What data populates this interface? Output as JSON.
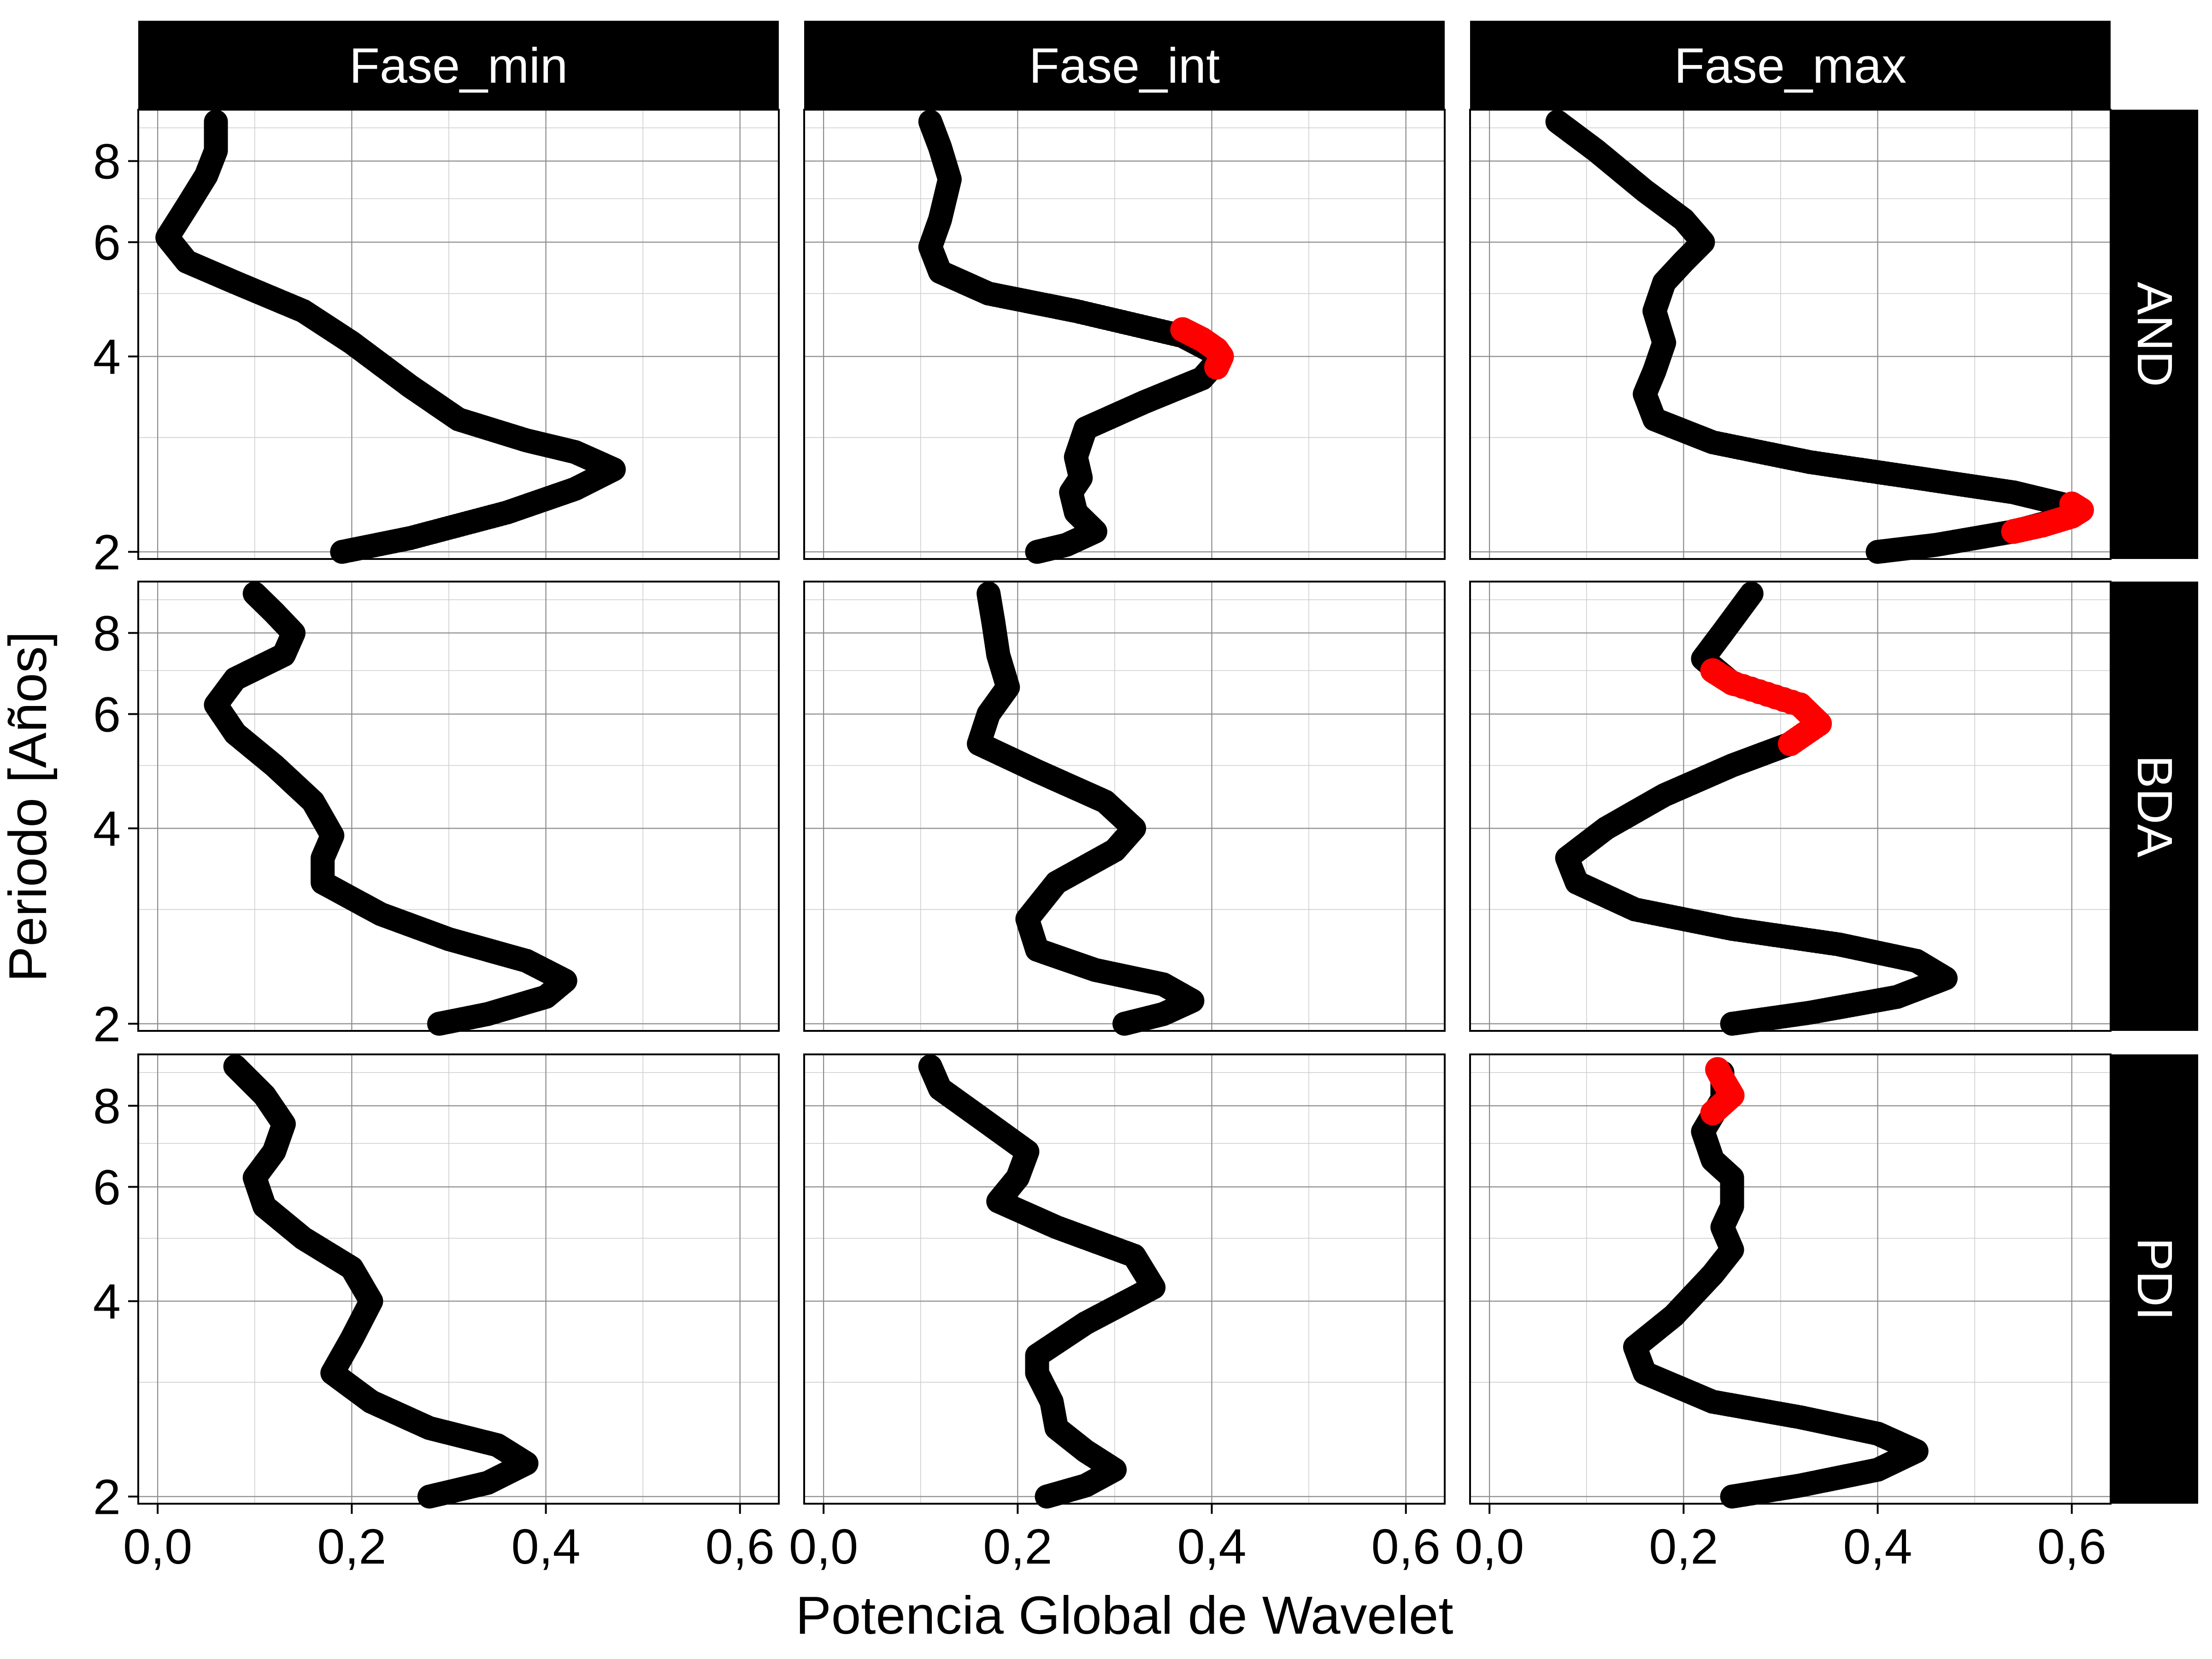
{
  "chart_data": {
    "type": "scatter",
    "title": "",
    "xlabel": "Potencia Global de Wavelet",
    "ylabel": "Periodo [Años]",
    "x_ticks": [
      "0,0",
      "0,2",
      "0,4",
      "0,6"
    ],
    "y_ticks": [
      "2",
      "4",
      "6",
      "8"
    ],
    "xlim": [
      -0.02,
      0.64
    ],
    "ylim": [
      1.95,
      9.6
    ],
    "y_scale": "log",
    "grid": true,
    "facet_columns": [
      "Fase_min",
      "Fase_int",
      "Fase_max"
    ],
    "facet_rows": [
      "AND",
      "BDA",
      "PDI"
    ],
    "colors": {
      "normal": "#000000",
      "significant": "#ff0000",
      "strip": "#000000",
      "strip_text": "#ffffff"
    },
    "panels": [
      {
        "row": "AND",
        "col": "Fase_min",
        "curve": [
          [
            0.19,
            2.0
          ],
          [
            0.26,
            2.1
          ],
          [
            0.36,
            2.3
          ],
          [
            0.43,
            2.5
          ],
          [
            0.47,
            2.68
          ],
          [
            0.43,
            2.85
          ],
          [
            0.38,
            2.97
          ],
          [
            0.31,
            3.2
          ],
          [
            0.26,
            3.6
          ],
          [
            0.2,
            4.2
          ],
          [
            0.15,
            4.7
          ],
          [
            0.08,
            5.2
          ],
          [
            0.03,
            5.6
          ],
          [
            0.01,
            6.1
          ],
          [
            0.03,
            6.8
          ],
          [
            0.05,
            7.6
          ],
          [
            0.06,
            8.3
          ],
          [
            0.06,
            9.2
          ]
        ],
        "significant": []
      },
      {
        "row": "AND",
        "col": "Fase_int",
        "curve": [
          [
            0.22,
            2.0
          ],
          [
            0.25,
            2.05
          ],
          [
            0.28,
            2.15
          ],
          [
            0.26,
            2.3
          ],
          [
            0.255,
            2.47
          ],
          [
            0.265,
            2.6
          ],
          [
            0.26,
            2.8
          ],
          [
            0.27,
            3.1
          ],
          [
            0.33,
            3.4
          ],
          [
            0.39,
            3.7
          ],
          [
            0.41,
            4.0
          ],
          [
            0.37,
            4.3
          ],
          [
            0.26,
            4.7
          ],
          [
            0.17,
            5.0
          ],
          [
            0.12,
            5.4
          ],
          [
            0.11,
            5.9
          ],
          [
            0.12,
            6.5
          ],
          [
            0.13,
            7.5
          ],
          [
            0.12,
            8.4
          ],
          [
            0.11,
            9.2
          ]
        ],
        "significant": [
          [
            0.37,
            4.4
          ],
          [
            0.39,
            4.25
          ],
          [
            0.405,
            4.1
          ],
          [
            0.41,
            4.0
          ],
          [
            0.405,
            3.85
          ]
        ]
      },
      {
        "row": "AND",
        "col": "Fase_max",
        "curve": [
          [
            0.4,
            2.0
          ],
          [
            0.46,
            2.05
          ],
          [
            0.54,
            2.15
          ],
          [
            0.6,
            2.27
          ],
          [
            0.6,
            2.35
          ],
          [
            0.54,
            2.47
          ],
          [
            0.44,
            2.6
          ],
          [
            0.33,
            2.75
          ],
          [
            0.23,
            2.95
          ],
          [
            0.17,
            3.2
          ],
          [
            0.16,
            3.5
          ],
          [
            0.17,
            3.8
          ],
          [
            0.18,
            4.2
          ],
          [
            0.17,
            4.7
          ],
          [
            0.18,
            5.2
          ],
          [
            0.2,
            5.6
          ],
          [
            0.22,
            6.0
          ],
          [
            0.2,
            6.5
          ],
          [
            0.16,
            7.2
          ],
          [
            0.11,
            8.3
          ],
          [
            0.07,
            9.2
          ]
        ],
        "significant": [
          [
            0.54,
            2.15
          ],
          [
            0.57,
            2.2
          ],
          [
            0.6,
            2.27
          ],
          [
            0.61,
            2.32
          ],
          [
            0.6,
            2.37
          ]
        ]
      },
      {
        "row": "BDA",
        "col": "Fase_min",
        "curve": [
          [
            0.29,
            2.0
          ],
          [
            0.34,
            2.07
          ],
          [
            0.4,
            2.2
          ],
          [
            0.42,
            2.33
          ],
          [
            0.38,
            2.5
          ],
          [
            0.3,
            2.7
          ],
          [
            0.23,
            2.95
          ],
          [
            0.17,
            3.3
          ],
          [
            0.17,
            3.6
          ],
          [
            0.18,
            3.9
          ],
          [
            0.16,
            4.4
          ],
          [
            0.12,
            5.0
          ],
          [
            0.08,
            5.6
          ],
          [
            0.06,
            6.2
          ],
          [
            0.08,
            6.8
          ],
          [
            0.13,
            7.4
          ],
          [
            0.14,
            8.0
          ],
          [
            0.12,
            8.6
          ],
          [
            0.1,
            9.2
          ]
        ],
        "significant": []
      },
      {
        "row": "BDA",
        "col": "Fase_int",
        "curve": [
          [
            0.31,
            2.0
          ],
          [
            0.35,
            2.07
          ],
          [
            0.38,
            2.17
          ],
          [
            0.35,
            2.3
          ],
          [
            0.28,
            2.42
          ],
          [
            0.22,
            2.6
          ],
          [
            0.21,
            2.9
          ],
          [
            0.24,
            3.3
          ],
          [
            0.3,
            3.7
          ],
          [
            0.32,
            4.0
          ],
          [
            0.29,
            4.4
          ],
          [
            0.22,
            4.9
          ],
          [
            0.16,
            5.4
          ],
          [
            0.17,
            6.0
          ],
          [
            0.19,
            6.6
          ],
          [
            0.18,
            7.4
          ],
          [
            0.175,
            8.3
          ],
          [
            0.17,
            9.2
          ]
        ],
        "significant": []
      },
      {
        "row": "BDA",
        "col": "Fase_max",
        "curve": [
          [
            0.25,
            2.0
          ],
          [
            0.33,
            2.08
          ],
          [
            0.42,
            2.2
          ],
          [
            0.47,
            2.35
          ],
          [
            0.44,
            2.5
          ],
          [
            0.36,
            2.65
          ],
          [
            0.25,
            2.8
          ],
          [
            0.15,
            3.0
          ],
          [
            0.09,
            3.3
          ],
          [
            0.08,
            3.6
          ],
          [
            0.12,
            4.0
          ],
          [
            0.18,
            4.5
          ],
          [
            0.25,
            5.0
          ],
          [
            0.31,
            5.4
          ],
          [
            0.34,
            5.8
          ],
          [
            0.32,
            6.2
          ],
          [
            0.25,
            6.7
          ],
          [
            0.22,
            7.3
          ],
          [
            0.24,
            8.0
          ],
          [
            0.27,
            9.2
          ]
        ],
        "significant": [
          [
            0.31,
            5.4
          ],
          [
            0.34,
            5.8
          ],
          [
            0.32,
            6.2
          ],
          [
            0.25,
            6.7
          ],
          [
            0.23,
            7.0
          ]
        ]
      },
      {
        "row": "PDI",
        "col": "Fase_min",
        "curve": [
          [
            0.28,
            2.0
          ],
          [
            0.34,
            2.1
          ],
          [
            0.38,
            2.25
          ],
          [
            0.35,
            2.4
          ],
          [
            0.28,
            2.55
          ],
          [
            0.22,
            2.8
          ],
          [
            0.18,
            3.1
          ],
          [
            0.2,
            3.5
          ],
          [
            0.22,
            4.0
          ],
          [
            0.2,
            4.5
          ],
          [
            0.15,
            5.0
          ],
          [
            0.11,
            5.6
          ],
          [
            0.1,
            6.2
          ],
          [
            0.12,
            6.8
          ],
          [
            0.13,
            7.5
          ],
          [
            0.11,
            8.3
          ],
          [
            0.08,
            9.2
          ]
        ],
        "significant": []
      },
      {
        "row": "PDI",
        "col": "Fase_int",
        "curve": [
          [
            0.23,
            2.0
          ],
          [
            0.27,
            2.08
          ],
          [
            0.3,
            2.2
          ],
          [
            0.27,
            2.35
          ],
          [
            0.24,
            2.55
          ],
          [
            0.235,
            2.8
          ],
          [
            0.22,
            3.1
          ],
          [
            0.22,
            3.3
          ],
          [
            0.27,
            3.7
          ],
          [
            0.34,
            4.2
          ],
          [
            0.32,
            4.7
          ],
          [
            0.24,
            5.2
          ],
          [
            0.18,
            5.7
          ],
          [
            0.2,
            6.2
          ],
          [
            0.21,
            6.8
          ],
          [
            0.16,
            7.7
          ],
          [
            0.12,
            8.5
          ],
          [
            0.11,
            9.2
          ]
        ],
        "significant": []
      },
      {
        "row": "PDI",
        "col": "Fase_max",
        "curve": [
          [
            0.25,
            2.0
          ],
          [
            0.32,
            2.08
          ],
          [
            0.4,
            2.2
          ],
          [
            0.44,
            2.35
          ],
          [
            0.4,
            2.5
          ],
          [
            0.32,
            2.65
          ],
          [
            0.23,
            2.8
          ],
          [
            0.16,
            3.1
          ],
          [
            0.15,
            3.4
          ],
          [
            0.19,
            3.8
          ],
          [
            0.23,
            4.4
          ],
          [
            0.25,
            4.8
          ],
          [
            0.24,
            5.2
          ],
          [
            0.25,
            5.6
          ],
          [
            0.25,
            6.2
          ],
          [
            0.23,
            6.6
          ],
          [
            0.22,
            7.3
          ],
          [
            0.24,
            8.2
          ],
          [
            0.24,
            9.0
          ]
        ],
        "significant": [
          [
            0.23,
            7.8
          ],
          [
            0.25,
            8.3
          ],
          [
            0.24,
            8.8
          ],
          [
            0.235,
            9.1
          ]
        ]
      }
    ]
  }
}
